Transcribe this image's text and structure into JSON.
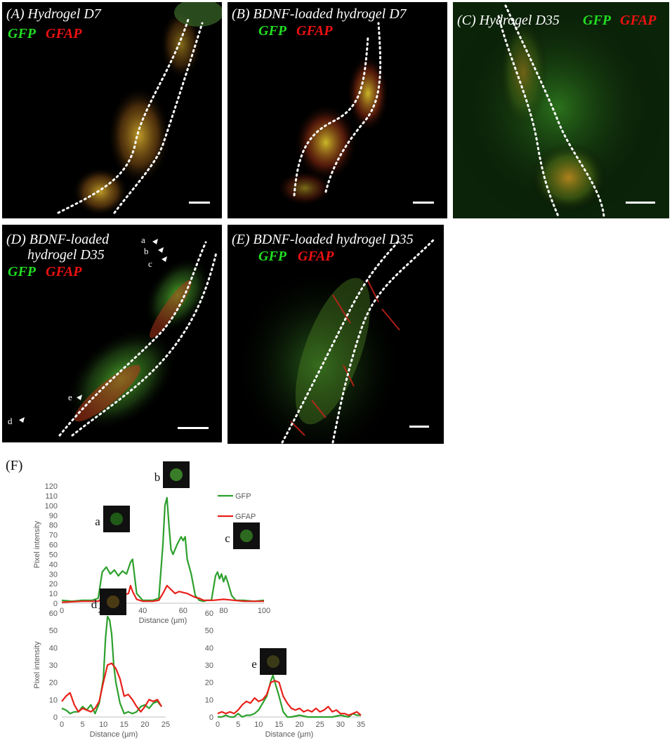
{
  "panels": [
    {
      "id": "A",
      "title": "(A) Hydrogel D7",
      "gfp": "GFP",
      "gfap": "GFAP"
    },
    {
      "id": "B",
      "title": "(B) BDNF-loaded hydrogel D7",
      "gfp": "GFP",
      "gfap": "GFAP"
    },
    {
      "id": "C",
      "title": "(C) Hydrogel D35",
      "gfp": "GFP",
      "gfap": "GFAP"
    },
    {
      "id": "D",
      "title": "(D) BDNF-loaded\n      hydrogel D35",
      "gfp": "GFP",
      "gfap": "GFAP",
      "arrows": [
        "a",
        "b",
        "c",
        "d",
        "e"
      ]
    },
    {
      "id": "E",
      "title": "(E) BDNF-loaded hydrogel D35",
      "gfp": "GFP",
      "gfap": "GFAP"
    }
  ],
  "figure_label": "(F)",
  "colors": {
    "gfp": "#2ca02c",
    "gfap": "#e8201a",
    "tissue_green": "#3fb43a",
    "tissue_red": "#d92d1d"
  },
  "chart_data": [
    {
      "type": "line",
      "ylabel": "Pixel intensity",
      "xlabel": "Distance (µm)",
      "xlim": [
        0,
        100
      ],
      "ylim": [
        0,
        120
      ],
      "xticks": [
        0,
        20,
        40,
        60,
        80,
        100
      ],
      "yticks": [
        0,
        10,
        20,
        30,
        40,
        50,
        60,
        70,
        80,
        90,
        100,
        110,
        120
      ],
      "legend": [
        "GFP",
        "GFAP"
      ],
      "legend_position": "top-right",
      "inset_labels": [
        "a",
        "b",
        "c"
      ],
      "series": [
        {
          "name": "GFP",
          "x": [
            0,
            5,
            10,
            15,
            18,
            20,
            22,
            24,
            26,
            28,
            30,
            32,
            34,
            35,
            37,
            40,
            45,
            48,
            50,
            51,
            52,
            53,
            54,
            55,
            57,
            59,
            60,
            61,
            62,
            64,
            66,
            68,
            70,
            72,
            74,
            76,
            77,
            78,
            79,
            80,
            81,
            82,
            84,
            86,
            90,
            95,
            100
          ],
          "y": [
            3,
            2,
            3,
            3,
            5,
            32,
            37,
            30,
            34,
            28,
            33,
            30,
            42,
            45,
            10,
            3,
            3,
            5,
            60,
            100,
            108,
            80,
            55,
            50,
            60,
            68,
            64,
            68,
            45,
            30,
            8,
            3,
            2,
            3,
            3,
            28,
            32,
            25,
            30,
            22,
            28,
            22,
            8,
            3,
            3,
            2,
            3
          ]
        },
        {
          "name": "GFAP",
          "x": [
            0,
            10,
            18,
            20,
            25,
            30,
            33,
            34,
            35,
            37,
            40,
            45,
            48,
            50,
            52,
            54,
            56,
            58,
            60,
            62,
            64,
            66,
            68,
            70,
            75,
            80,
            85,
            90,
            95,
            100
          ],
          "y": [
            1,
            2,
            2,
            5,
            6,
            8,
            10,
            18,
            12,
            4,
            2,
            2,
            3,
            10,
            18,
            14,
            10,
            12,
            11,
            10,
            8,
            6,
            5,
            3,
            3,
            4,
            3,
            2,
            2,
            2
          ]
        }
      ]
    },
    {
      "type": "line",
      "ylabel": "Pixel intensity",
      "xlabel": "Distance (µm)",
      "xlim": [
        0,
        25
      ],
      "ylim": [
        0,
        60
      ],
      "xticks": [
        0,
        5,
        10,
        15,
        20,
        25
      ],
      "yticks": [
        0,
        10,
        20,
        30,
        40,
        50,
        60
      ],
      "inset_labels": [
        "d"
      ],
      "series": [
        {
          "name": "GFP",
          "x": [
            0,
            1,
            2,
            3,
            4,
            5,
            6,
            7,
            8,
            9,
            10,
            10.5,
            11,
            11.5,
            12,
            12.5,
            13,
            14,
            15,
            16,
            17,
            18,
            19,
            20,
            21,
            22,
            23,
            24
          ],
          "y": [
            5,
            4,
            2,
            3,
            3,
            6,
            4,
            7,
            2,
            8,
            22,
            45,
            58,
            56,
            48,
            30,
            20,
            8,
            2,
            3,
            2,
            3,
            6,
            7,
            5,
            8,
            9,
            6
          ]
        },
        {
          "name": "GFAP",
          "x": [
            0,
            1,
            2,
            3,
            4,
            5,
            6,
            7,
            8,
            9,
            10,
            11,
            12,
            13,
            14,
            15,
            16,
            17,
            18,
            19,
            20,
            21,
            22,
            23,
            24
          ],
          "y": [
            9,
            12,
            14,
            7,
            3,
            5,
            4,
            3,
            5,
            9,
            20,
            30,
            31,
            28,
            22,
            12,
            13,
            10,
            6,
            3,
            6,
            10,
            9,
            10,
            6
          ]
        }
      ]
    },
    {
      "type": "line",
      "ylabel": "",
      "xlabel": "Distance (µm)",
      "xlim": [
        0,
        35
      ],
      "ylim": [
        0,
        60
      ],
      "xticks": [
        0,
        5,
        10,
        15,
        20,
        25,
        30,
        35
      ],
      "yticks": [
        0,
        10,
        20,
        30,
        40,
        50,
        60
      ],
      "inset_labels": [
        "e"
      ],
      "series": [
        {
          "name": "GFP",
          "x": [
            0,
            1,
            2,
            3,
            4,
            5,
            6,
            7,
            8,
            9,
            10,
            11,
            12,
            13,
            13.5,
            14,
            15,
            16,
            17,
            18,
            20,
            22,
            25,
            28,
            30,
            32,
            33,
            34,
            35
          ],
          "y": [
            0,
            0,
            1,
            0,
            0,
            2,
            0,
            1,
            1,
            2,
            4,
            8,
            12,
            21,
            24,
            20,
            12,
            3,
            0,
            0,
            1,
            0,
            0,
            0,
            1,
            0,
            2,
            1,
            1
          ]
        },
        {
          "name": "GFAP",
          "x": [
            0,
            1,
            2,
            3,
            4,
            5,
            6,
            7,
            8,
            9,
            10,
            11,
            12,
            13,
            14,
            15,
            16,
            17,
            18,
            19,
            20,
            21,
            22,
            23,
            24,
            25,
            26,
            27,
            28,
            29,
            30,
            31,
            32,
            33,
            34,
            35
          ],
          "y": [
            2,
            3,
            2,
            3,
            2,
            4,
            7,
            9,
            8,
            11,
            9,
            10,
            13,
            20,
            21,
            20,
            12,
            8,
            5,
            4,
            5,
            3,
            4,
            3,
            5,
            3,
            4,
            6,
            3,
            4,
            2,
            2,
            1,
            2,
            3,
            1
          ]
        }
      ]
    }
  ]
}
